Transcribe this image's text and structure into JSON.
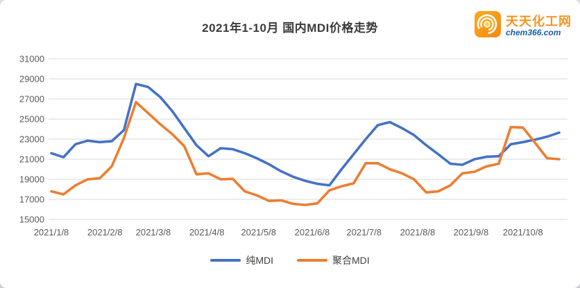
{
  "window": {
    "background": "#e7e9ec",
    "card_background": "#ffffff"
  },
  "header": {
    "title": "2021年1-10月 国内MDI价格走势",
    "logo": {
      "site_name": "天天化工网",
      "site_domain": "chem366.com",
      "orange": "#F7941D",
      "blue": "#1A5DA8"
    }
  },
  "chart_data": {
    "type": "line",
    "title": "2021年1-10月 国内MDI价格走势",
    "x_unit": "weekly price readings, 2021/1/8 - 2021/10/29",
    "x_label_dates": [
      "2021/1/8",
      "2021/2/8",
      "2021/3/8",
      "2021/4/8",
      "2021/5/8",
      "2021/6/8",
      "2021/7/8",
      "2021/8/8",
      "2021/9/8",
      "2021/10/8"
    ],
    "x_label_week_offsets": [
      0,
      4.43,
      8.43,
      12.86,
      17.14,
      21.57,
      25.86,
      30.29,
      34.71,
      39.0
    ],
    "y_ticks": [
      15000,
      17000,
      19000,
      21000,
      23000,
      25000,
      27000,
      29000,
      31000
    ],
    "ylim": [
      15000,
      31000
    ],
    "grid": true,
    "grid_color": "#D9D9D9",
    "axis_text_color": "#595959",
    "legend_position": "bottom",
    "series": [
      {
        "name": "纯MDI",
        "color": "#4472C4",
        "values": [
          21600,
          21200,
          22500,
          22850,
          22700,
          22800,
          23900,
          28500,
          28200,
          27200,
          25800,
          24100,
          22400,
          21300,
          22100,
          22000,
          21600,
          21100,
          20500,
          19800,
          19250,
          18850,
          18550,
          18400,
          20000,
          21500,
          23000,
          24400,
          24700,
          24100,
          23400,
          22400,
          21500,
          20550,
          20450,
          21000,
          21250,
          21300,
          22500,
          22700,
          22950,
          23250,
          23650
        ]
      },
      {
        "name": "聚合MDI",
        "color": "#ED7D31",
        "values": [
          17800,
          17500,
          18400,
          19000,
          19100,
          20300,
          23100,
          26700,
          25600,
          24500,
          23500,
          22300,
          19500,
          19600,
          19000,
          19050,
          17800,
          17400,
          16850,
          16900,
          16550,
          16450,
          16600,
          17900,
          18300,
          18600,
          20600,
          20600,
          20000,
          19600,
          19000,
          17700,
          17800,
          18400,
          19600,
          19750,
          20300,
          20550,
          24200,
          24150,
          22650,
          21100,
          21000
        ]
      }
    ]
  }
}
